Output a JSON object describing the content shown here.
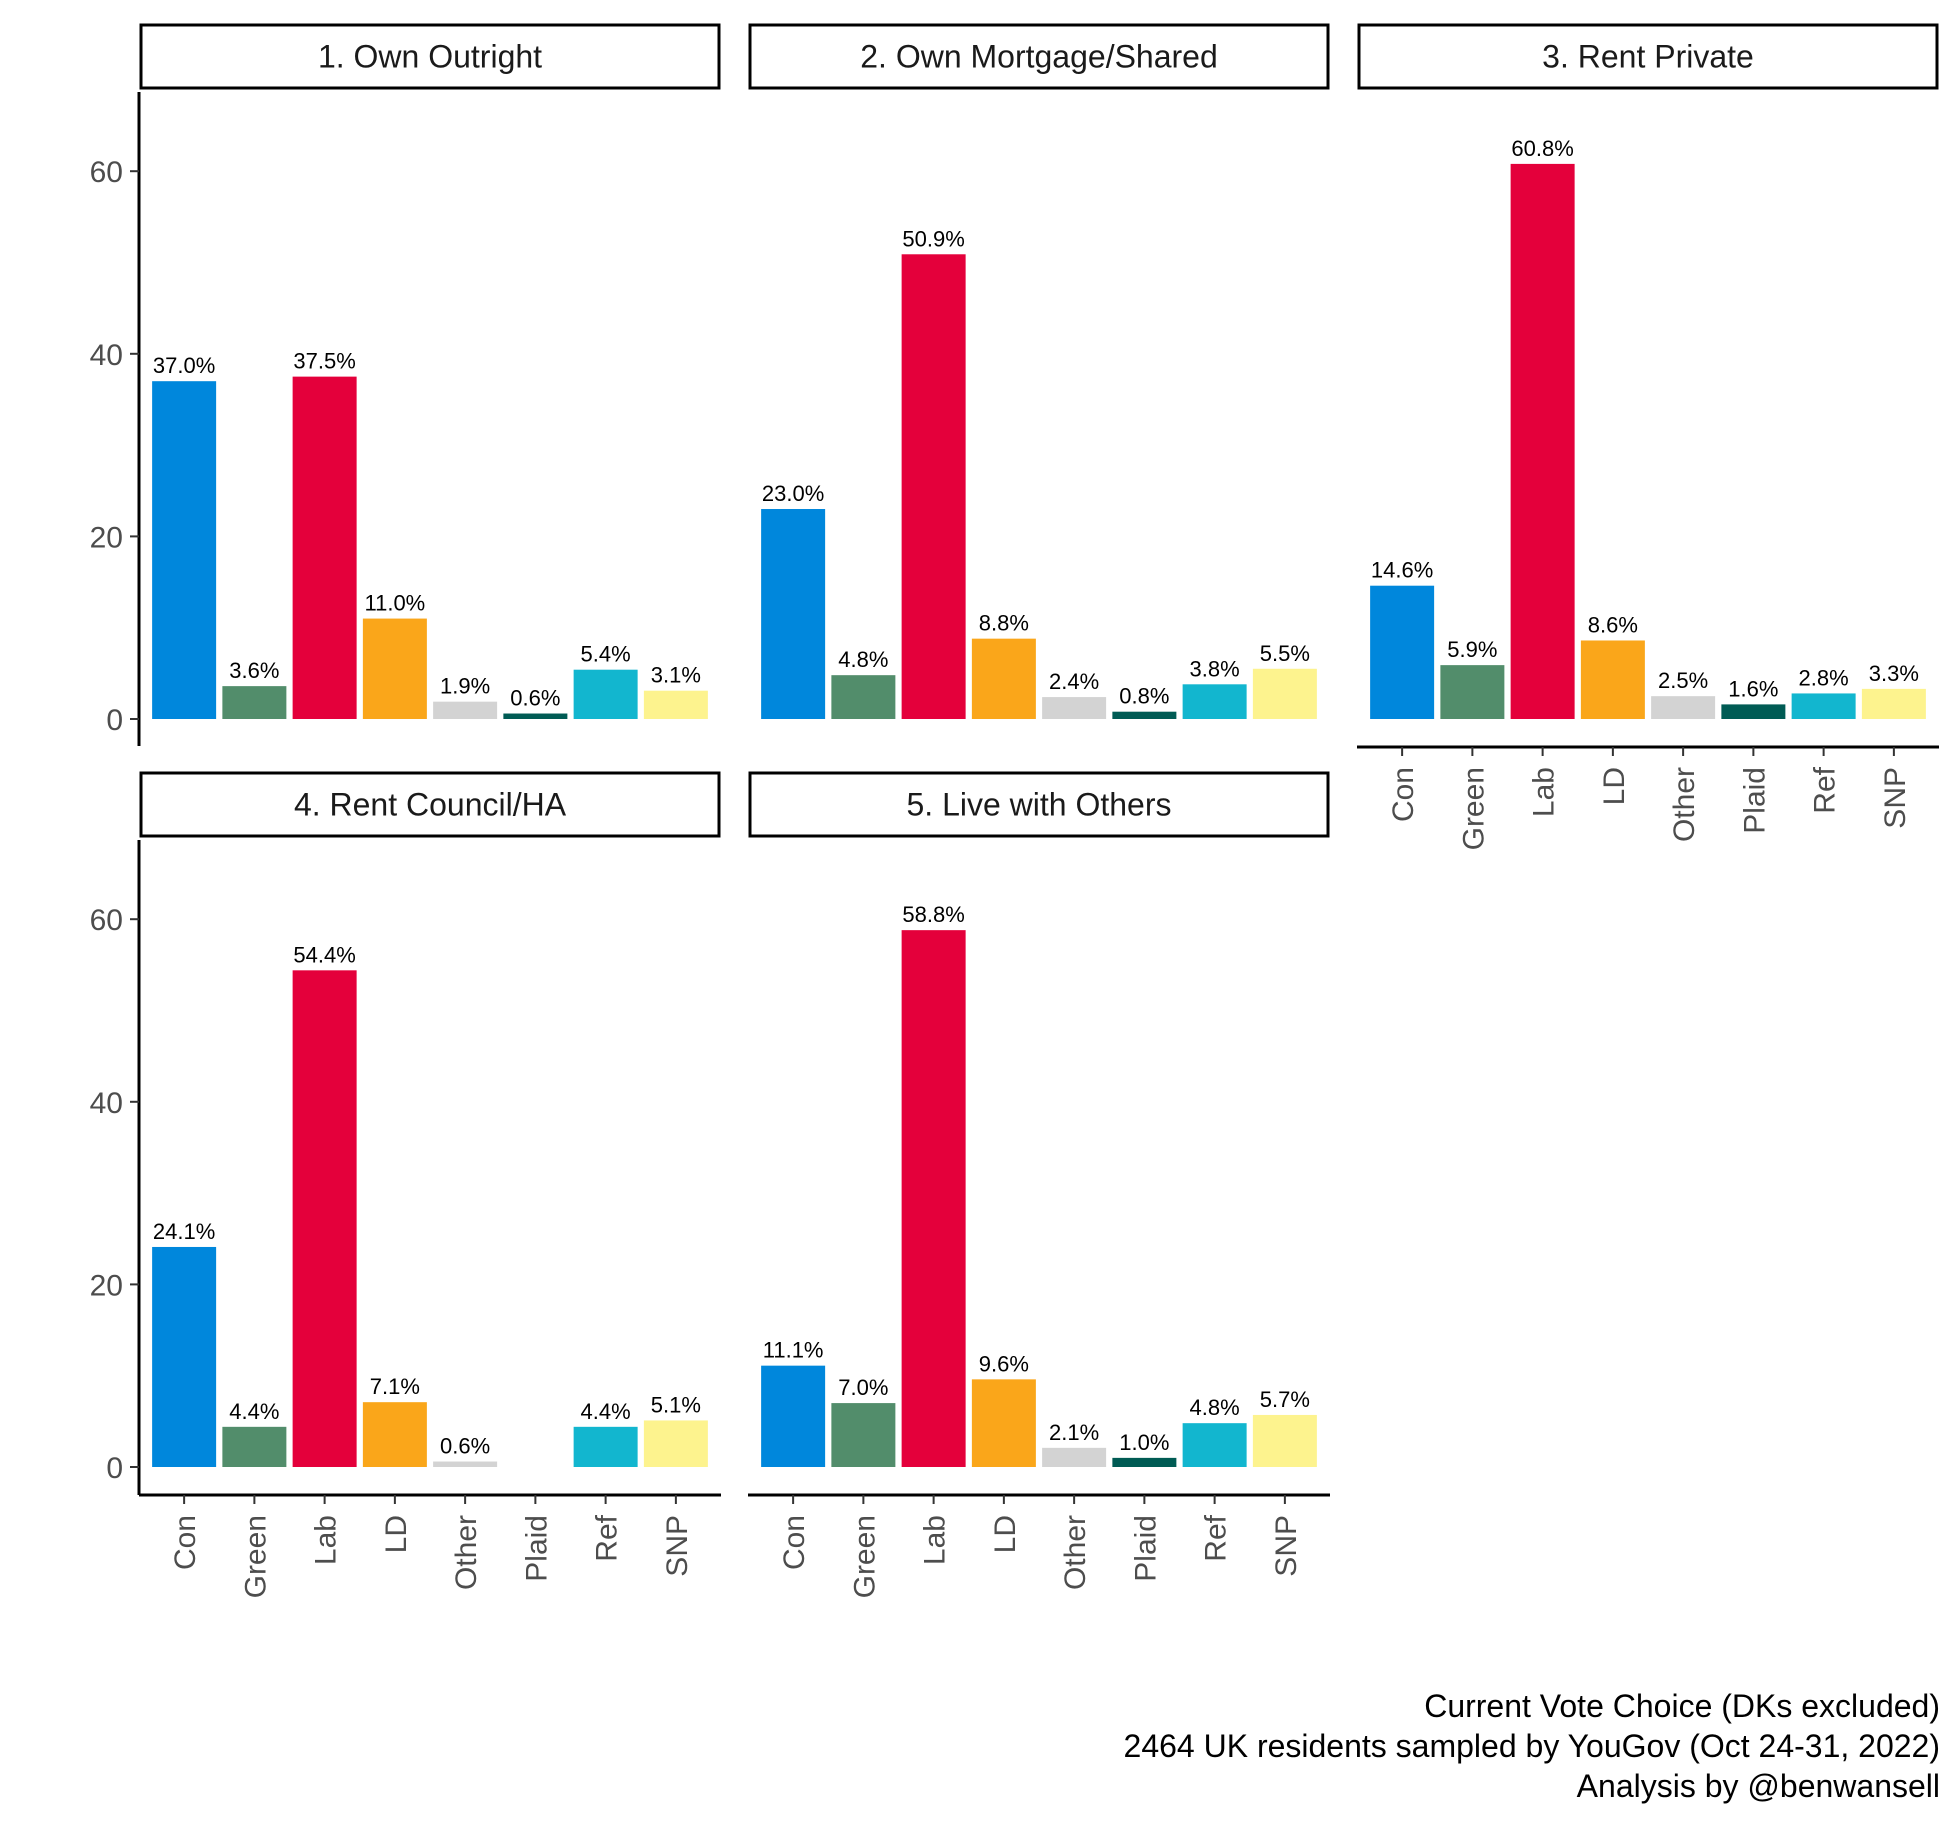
{
  "chart_data": {
    "type": "bar",
    "categories": [
      "Con",
      "Green",
      "Lab",
      "LD",
      "Other",
      "Plaid",
      "Ref",
      "SNP"
    ],
    "colors": {
      "Con": "#0087dc",
      "Green": "#528d6b",
      "Lab": "#e4003b",
      "LD": "#faa61a",
      "Other": "#d3d3d3",
      "Plaid": "#005b54",
      "Ref": "#12b6cf",
      "SNP": "#fdf38e"
    },
    "ylim": [
      0,
      68
    ],
    "yticks": [
      "0",
      "20",
      "40",
      "60"
    ],
    "panels": [
      {
        "title": "1. Own Outright",
        "values": [
          37.0,
          3.6,
          37.5,
          11.0,
          1.9,
          0.6,
          5.4,
          3.1
        ],
        "labels": [
          "37.0%",
          "3.6%",
          "37.5%",
          "11.0%",
          "1.9%",
          "0.6%",
          "5.4%",
          "3.1%"
        ]
      },
      {
        "title": "2. Own Mortgage/Shared",
        "values": [
          23.0,
          4.8,
          50.9,
          8.8,
          2.4,
          0.8,
          3.8,
          5.5
        ],
        "labels": [
          "23.0%",
          "4.8%",
          "50.9%",
          "8.8%",
          "2.4%",
          "0.8%",
          "3.8%",
          "5.5%"
        ]
      },
      {
        "title": "3. Rent Private",
        "values": [
          14.6,
          5.9,
          60.8,
          8.6,
          2.5,
          1.6,
          2.8,
          3.3
        ],
        "labels": [
          "14.6%",
          "5.9%",
          "60.8%",
          "8.6%",
          "2.5%",
          "1.6%",
          "2.8%",
          "3.3%"
        ]
      },
      {
        "title": "4. Rent Council/HA",
        "values": [
          24.1,
          4.4,
          54.4,
          7.1,
          0.6,
          null,
          4.4,
          5.1
        ],
        "labels": [
          "24.1%",
          "4.4%",
          "54.4%",
          "7.1%",
          "0.6%",
          "",
          "4.4%",
          "5.1%"
        ]
      },
      {
        "title": "5. Live with Others",
        "values": [
          11.1,
          7.0,
          58.8,
          9.6,
          2.1,
          1.0,
          4.8,
          5.7
        ],
        "labels": [
          "11.1%",
          "7.0%",
          "58.8%",
          "9.6%",
          "2.1%",
          "1.0%",
          "4.8%",
          "5.7%"
        ]
      }
    ],
    "caption": [
      "Current Vote Choice (DKs excluded)",
      "2464 UK residents sampled by YouGov (Oct 24-31, 2022)",
      "Analysis by @benwansell"
    ]
  }
}
